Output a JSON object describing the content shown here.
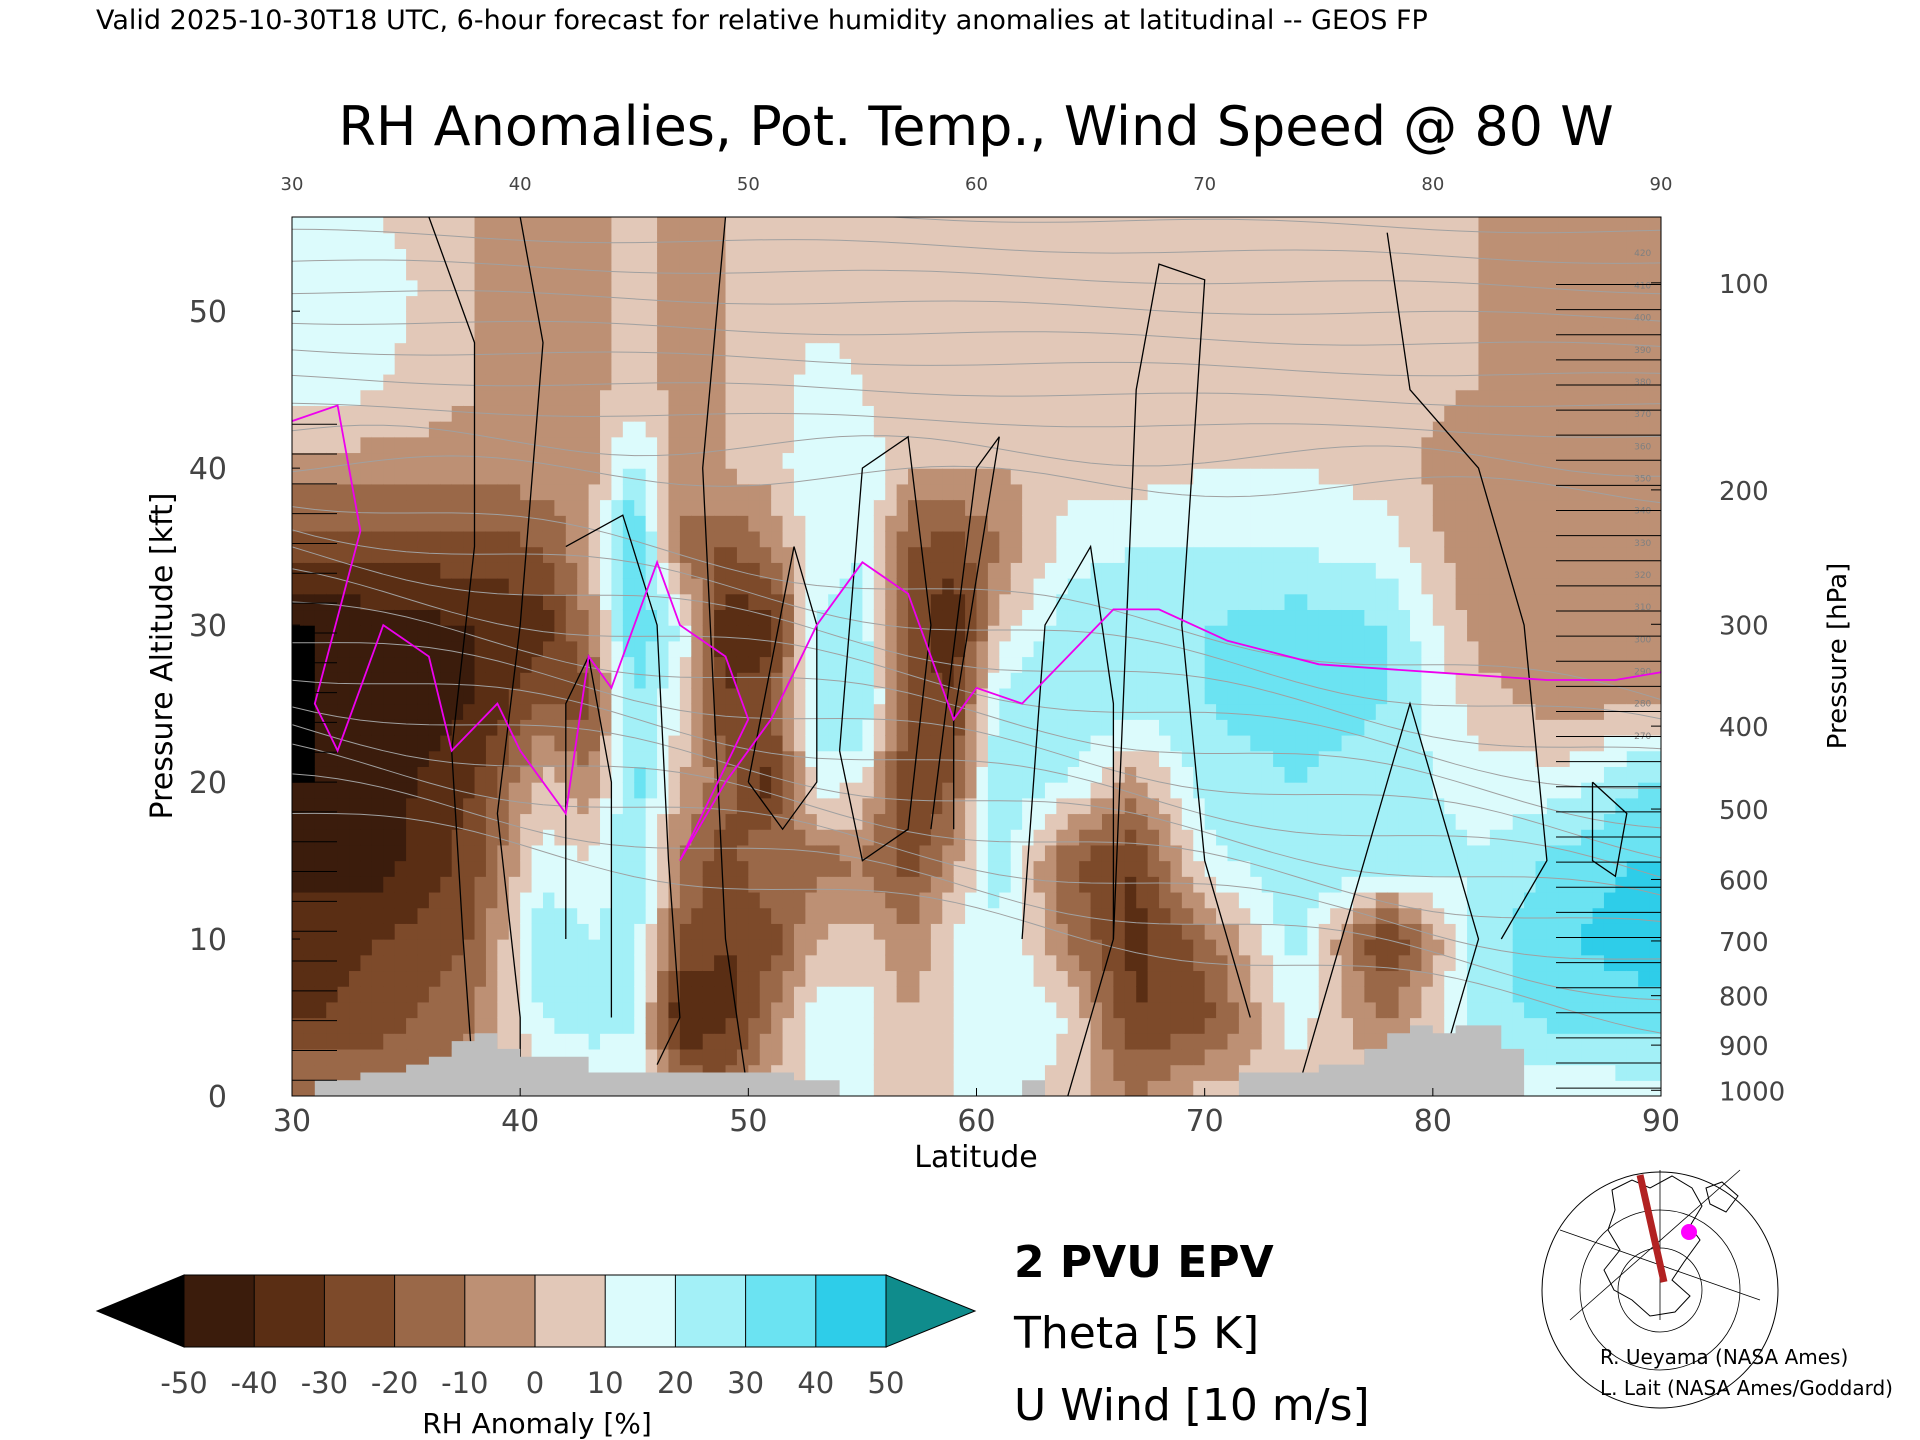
{
  "header": {
    "valid_line": "Valid 2025-10-30T18 UTC, 6-hour forecast for relative humidity anomalies at latitudinal -- GEOS FP"
  },
  "chart_data": {
    "type": "heatmap",
    "title": "RH Anomalies, Pot. Temp., Wind Speed @ 80 W",
    "xlabel": "Latitude",
    "ylabel": "Pressure Altitude [kft]",
    "y2label": "Pressure [hPa]",
    "xlim": [
      30,
      90
    ],
    "ylim": [
      0,
      56
    ],
    "x_ticks_bottom": [
      "30",
      "40",
      "50",
      "60",
      "70",
      "80",
      "90"
    ],
    "x_ticks_top": [
      "30",
      "40",
      "50",
      "60",
      "70",
      "80",
      "90"
    ],
    "y_ticks_left": [
      "0",
      "10",
      "20",
      "30",
      "40",
      "50"
    ],
    "pressure_ticks": [
      {
        "hpa": 1000,
        "label": "1000"
      },
      {
        "hpa": 900,
        "label": "900"
      },
      {
        "hpa": 800,
        "label": "800"
      },
      {
        "hpa": 700,
        "label": "700"
      },
      {
        "hpa": 600,
        "label": "600"
      },
      {
        "hpa": 500,
        "label": "500"
      },
      {
        "hpa": 400,
        "label": "400"
      },
      {
        "hpa": 300,
        "label": "300"
      },
      {
        "hpa": 200,
        "label": "200"
      },
      {
        "hpa": 100,
        "label": "100"
      }
    ],
    "theta_labels_right": [
      "420",
      "410",
      "400",
      "390",
      "380",
      "370",
      "360",
      "350",
      "340",
      "330",
      "320",
      "310",
      "300",
      "290",
      "280",
      "270"
    ],
    "rh_columns": [
      {
        "lat": 31,
        "profile": [
          [
            0,
            -10
          ],
          [
            5,
            -30
          ],
          [
            10,
            -35
          ],
          [
            15,
            -45
          ],
          [
            20,
            -50
          ],
          [
            25,
            -50
          ],
          [
            30,
            -50
          ],
          [
            35,
            -25
          ],
          [
            40,
            -5
          ],
          [
            45,
            15
          ],
          [
            52,
            20
          ],
          [
            56,
            15
          ]
        ]
      },
      {
        "lat": 34,
        "profile": [
          [
            0,
            -10
          ],
          [
            5,
            -25
          ],
          [
            10,
            -30
          ],
          [
            15,
            -45
          ],
          [
            20,
            -45
          ],
          [
            25,
            -50
          ],
          [
            30,
            -45
          ],
          [
            35,
            -25
          ],
          [
            40,
            -5
          ],
          [
            45,
            10
          ],
          [
            52,
            15
          ],
          [
            56,
            10
          ]
        ]
      },
      {
        "lat": 38,
        "profile": [
          [
            0,
            -5
          ],
          [
            5,
            -10
          ],
          [
            10,
            -20
          ],
          [
            15,
            -25
          ],
          [
            20,
            -30
          ],
          [
            25,
            -40
          ],
          [
            30,
            -40
          ],
          [
            35,
            -25
          ],
          [
            40,
            -5
          ],
          [
            45,
            0
          ],
          [
            56,
            0
          ]
        ]
      },
      {
        "lat": 41,
        "profile": [
          [
            0,
            5
          ],
          [
            5,
            20
          ],
          [
            10,
            30
          ],
          [
            15,
            15
          ],
          [
            20,
            5
          ],
          [
            25,
            -20
          ],
          [
            30,
            -35
          ],
          [
            35,
            -20
          ],
          [
            40,
            -5
          ],
          [
            56,
            0
          ]
        ]
      },
      {
        "lat": 43,
        "profile": [
          [
            0,
            10
          ],
          [
            5,
            25
          ],
          [
            10,
            20
          ],
          [
            15,
            10
          ],
          [
            20,
            -10
          ],
          [
            25,
            -25
          ],
          [
            30,
            -10
          ],
          [
            35,
            0
          ],
          [
            40,
            -5
          ],
          [
            56,
            0
          ]
        ]
      },
      {
        "lat": 45,
        "profile": [
          [
            0,
            15
          ],
          [
            5,
            20
          ],
          [
            10,
            25
          ],
          [
            15,
            30
          ],
          [
            20,
            35
          ],
          [
            25,
            30
          ],
          [
            30,
            40
          ],
          [
            35,
            45
          ],
          [
            40,
            25
          ],
          [
            45,
            5
          ],
          [
            56,
            0
          ]
        ]
      },
      {
        "lat": 47,
        "profile": [
          [
            0,
            -10
          ],
          [
            5,
            -40
          ],
          [
            10,
            -20
          ],
          [
            15,
            -10
          ],
          [
            20,
            0
          ],
          [
            25,
            10
          ],
          [
            30,
            20
          ],
          [
            35,
            -15
          ],
          [
            40,
            -5
          ],
          [
            56,
            0
          ]
        ]
      },
      {
        "lat": 49,
        "profile": [
          [
            0,
            -15
          ],
          [
            5,
            -35
          ],
          [
            10,
            -30
          ],
          [
            15,
            -25
          ],
          [
            20,
            -15
          ],
          [
            25,
            -30
          ],
          [
            30,
            -40
          ],
          [
            35,
            -20
          ],
          [
            40,
            0
          ],
          [
            56,
            0
          ]
        ]
      },
      {
        "lat": 51,
        "profile": [
          [
            0,
            5
          ],
          [
            5,
            -10
          ],
          [
            10,
            -25
          ],
          [
            15,
            -10
          ],
          [
            20,
            -35
          ],
          [
            25,
            -20
          ],
          [
            30,
            -35
          ],
          [
            35,
            -10
          ],
          [
            40,
            5
          ],
          [
            56,
            0
          ]
        ]
      },
      {
        "lat": 53,
        "profile": [
          [
            0,
            10
          ],
          [
            5,
            15
          ],
          [
            10,
            0
          ],
          [
            15,
            -15
          ],
          [
            20,
            15
          ],
          [
            25,
            25
          ],
          [
            30,
            20
          ],
          [
            35,
            15
          ],
          [
            40,
            20
          ],
          [
            45,
            15
          ],
          [
            56,
            0
          ]
        ]
      },
      {
        "lat": 55,
        "profile": [
          [
            0,
            10
          ],
          [
            5,
            15
          ],
          [
            10,
            5
          ],
          [
            15,
            -10
          ],
          [
            20,
            10
          ],
          [
            25,
            30
          ],
          [
            30,
            25
          ],
          [
            35,
            20
          ],
          [
            40,
            20
          ],
          [
            45,
            10
          ],
          [
            56,
            0
          ]
        ]
      },
      {
        "lat": 57,
        "profile": [
          [
            0,
            10
          ],
          [
            5,
            0
          ],
          [
            10,
            -10
          ],
          [
            15,
            -25
          ],
          [
            20,
            -30
          ],
          [
            25,
            -20
          ],
          [
            30,
            -25
          ],
          [
            35,
            -20
          ],
          [
            40,
            0
          ],
          [
            56,
            0
          ]
        ]
      },
      {
        "lat": 59,
        "profile": [
          [
            0,
            10
          ],
          [
            5,
            10
          ],
          [
            10,
            10
          ],
          [
            15,
            -5
          ],
          [
            20,
            -20
          ],
          [
            25,
            -30
          ],
          [
            30,
            -40
          ],
          [
            35,
            -25
          ],
          [
            40,
            0
          ],
          [
            56,
            0
          ]
        ]
      },
      {
        "lat": 61,
        "profile": [
          [
            0,
            15
          ],
          [
            5,
            20
          ],
          [
            10,
            20
          ],
          [
            15,
            25
          ],
          [
            20,
            30
          ],
          [
            25,
            25
          ],
          [
            30,
            5
          ],
          [
            35,
            -10
          ],
          [
            40,
            0
          ],
          [
            56,
            0
          ]
        ]
      },
      {
        "lat": 64,
        "profile": [
          [
            0,
            5
          ],
          [
            5,
            10
          ],
          [
            10,
            -10
          ],
          [
            15,
            -20
          ],
          [
            20,
            20
          ],
          [
            25,
            30
          ],
          [
            30,
            25
          ],
          [
            35,
            15
          ],
          [
            40,
            5
          ],
          [
            56,
            0
          ]
        ]
      },
      {
        "lat": 67,
        "profile": [
          [
            0,
            -10
          ],
          [
            5,
            -30
          ],
          [
            10,
            -35
          ],
          [
            15,
            -30
          ],
          [
            20,
            -5
          ],
          [
            25,
            25
          ],
          [
            30,
            30
          ],
          [
            35,
            20
          ],
          [
            40,
            5
          ],
          [
            56,
            0
          ]
        ]
      },
      {
        "lat": 70,
        "profile": [
          [
            0,
            5
          ],
          [
            5,
            -25
          ],
          [
            10,
            -15
          ],
          [
            15,
            15
          ],
          [
            20,
            25
          ],
          [
            25,
            30
          ],
          [
            30,
            30
          ],
          [
            35,
            20
          ],
          [
            40,
            10
          ],
          [
            56,
            0
          ]
        ]
      },
      {
        "lat": 74,
        "profile": [
          [
            0,
            5
          ],
          [
            5,
            15
          ],
          [
            10,
            25
          ],
          [
            15,
            30
          ],
          [
            20,
            30
          ],
          [
            25,
            35
          ],
          [
            30,
            35
          ],
          [
            35,
            20
          ],
          [
            40,
            10
          ],
          [
            56,
            0
          ]
        ]
      },
      {
        "lat": 78,
        "profile": [
          [
            0,
            5
          ],
          [
            5,
            -10
          ],
          [
            10,
            -35
          ],
          [
            15,
            30
          ],
          [
            20,
            25
          ],
          [
            25,
            30
          ],
          [
            30,
            30
          ],
          [
            35,
            15
          ],
          [
            40,
            5
          ],
          [
            56,
            0
          ]
        ]
      },
      {
        "lat": 82,
        "profile": [
          [
            0,
            10
          ],
          [
            5,
            25
          ],
          [
            10,
            25
          ],
          [
            15,
            20
          ],
          [
            20,
            15
          ],
          [
            25,
            5
          ],
          [
            30,
            -5
          ],
          [
            35,
            -10
          ],
          [
            40,
            -10
          ],
          [
            45,
            0
          ],
          [
            56,
            0
          ]
        ]
      },
      {
        "lat": 86,
        "profile": [
          [
            0,
            10
          ],
          [
            5,
            35
          ],
          [
            10,
            40
          ],
          [
            15,
            35
          ],
          [
            20,
            15
          ],
          [
            25,
            -5
          ],
          [
            30,
            -10
          ],
          [
            35,
            -10
          ],
          [
            40,
            -10
          ],
          [
            56,
            0
          ]
        ]
      },
      {
        "lat": 89,
        "profile": [
          [
            0,
            15
          ],
          [
            5,
            35
          ],
          [
            10,
            45
          ],
          [
            15,
            40
          ],
          [
            20,
            30
          ],
          [
            25,
            0
          ],
          [
            30,
            -5
          ],
          [
            35,
            -10
          ],
          [
            40,
            -5
          ],
          [
            56,
            0
          ]
        ]
      }
    ],
    "epv_2pvu_line": [
      [
        30,
        43
      ],
      [
        32,
        44
      ],
      [
        33,
        36
      ],
      [
        31,
        25
      ],
      [
        32,
        22
      ],
      [
        34,
        30
      ],
      [
        36,
        28
      ],
      [
        37,
        22
      ],
      [
        39,
        25
      ],
      [
        40,
        22
      ],
      [
        42,
        18
      ],
      [
        43,
        28
      ],
      [
        44,
        26
      ],
      [
        45,
        30
      ],
      [
        46,
        34
      ],
      [
        47,
        30
      ],
      [
        49,
        28
      ],
      [
        50,
        24
      ],
      [
        48,
        18
      ],
      [
        47,
        15
      ],
      [
        49,
        20
      ],
      [
        51,
        24
      ],
      [
        52,
        27
      ],
      [
        53,
        30
      ],
      [
        55,
        34
      ],
      [
        57,
        32
      ],
      [
        58,
        28
      ],
      [
        59,
        24
      ],
      [
        60,
        26
      ],
      [
        62,
        25
      ],
      [
        64,
        28
      ],
      [
        66,
        31
      ],
      [
        68,
        31
      ],
      [
        71,
        29
      ],
      [
        75,
        27.5
      ],
      [
        80,
        27
      ],
      [
        85,
        26.5
      ],
      [
        88,
        26.5
      ],
      [
        90,
        27
      ]
    ],
    "theta_levels": [
      "270",
      "280",
      "290",
      "300",
      "310",
      "320",
      "330",
      "340",
      "350",
      "360",
      "370",
      "380",
      "390",
      "400",
      "410",
      "420"
    ],
    "u_wind_contours_label": "U Wind [10 m/s]",
    "colorbar": {
      "label": "RH Anomaly [%]",
      "ticks": [
        "-50",
        "-40",
        "-30",
        "-20",
        "-10",
        "0",
        "10",
        "20",
        "30",
        "40",
        "50"
      ],
      "colors": [
        "#000000",
        "#3b1c0c",
        "#5a2e14",
        "#7d4a2a",
        "#9a6848",
        "#bd9074",
        "#e2c8b8",
        "#dcfbfc",
        "#a3f0f7",
        "#6be3f2",
        "#2ecde9",
        "#14a6c7",
        "#0f8c8c"
      ]
    },
    "terrain_color": "#bebebe",
    "background_color": "#e6e4dc"
  },
  "legend": {
    "epv": "2 PVU EPV",
    "theta": "Theta [5 K]",
    "wind": "U Wind [10 m/s]",
    "epv_color": "#ee00ee",
    "theta_color": "#a0a0a0"
  },
  "credits": {
    "line1": "R. Ueyama (NASA Ames)",
    "line2": "L. Lait (NASA Ames/Goddard)"
  }
}
